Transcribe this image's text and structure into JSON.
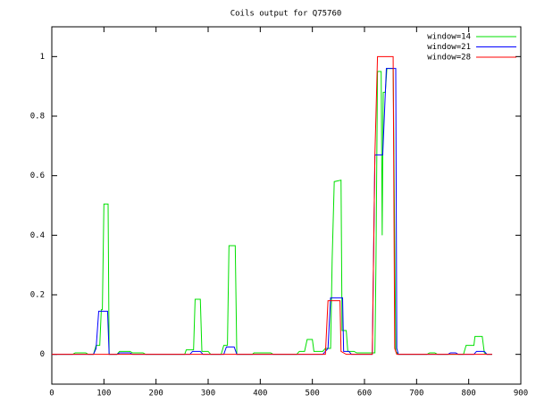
{
  "chart_data": {
    "type": "line",
    "title": "Coils output for Q75760",
    "xlim": [
      0,
      900
    ],
    "xticks": [
      0,
      100,
      200,
      300,
      400,
      500,
      600,
      700,
      800,
      900
    ],
    "ylim": [
      -0.1,
      1.1
    ],
    "yticks": [
      0,
      0.2,
      0.4,
      0.6,
      0.8,
      1
    ],
    "legend": "top-right",
    "series": [
      {
        "name": "window=14",
        "color": "#00e000",
        "x": [
          0,
          40,
          45,
          65,
          70,
          80,
          85,
          92,
          95,
          97,
          100,
          108,
          110,
          125,
          130,
          150,
          155,
          175,
          180,
          255,
          258,
          272,
          275,
          285,
          288,
          300,
          305,
          325,
          330,
          337,
          340,
          352,
          355,
          385,
          388,
          420,
          425,
          470,
          475,
          485,
          490,
          500,
          503,
          520,
          525,
          535,
          538,
          542,
          555,
          557,
          565,
          568,
          580,
          585,
          620,
          622,
          625,
          632,
          634,
          636,
          640,
          643,
          655,
          660,
          665,
          720,
          725,
          735,
          740,
          790,
          795,
          810,
          812,
          826,
          830,
          835,
          845
        ],
        "values": [
          0,
          0,
          0.005,
          0.005,
          0,
          0,
          0.03,
          0.03,
          0.15,
          0.15,
          0.505,
          0.505,
          0,
          0,
          0.01,
          0.01,
          0.005,
          0.005,
          0,
          0,
          0.015,
          0.015,
          0.185,
          0.185,
          0.01,
          0.01,
          0,
          0,
          0.03,
          0.03,
          0.365,
          0.365,
          0,
          0,
          0.005,
          0.005,
          0,
          0,
          0.01,
          0.01,
          0.05,
          0.05,
          0.01,
          0.01,
          0.02,
          0.02,
          0.32,
          0.58,
          0.585,
          0.08,
          0.08,
          0.01,
          0.01,
          0.005,
          0.005,
          0.3,
          0.95,
          0.95,
          0.4,
          0.88,
          0.88,
          0.96,
          0.96,
          0.01,
          0,
          0,
          0.005,
          0.005,
          0,
          0,
          0.03,
          0.03,
          0.06,
          0.06,
          0.005,
          0,
          0
        ]
      },
      {
        "name": "window=21",
        "color": "#0000ff",
        "x": [
          0,
          80,
          85,
          90,
          107,
          110,
          125,
          130,
          150,
          155,
          265,
          270,
          285,
          290,
          330,
          335,
          350,
          355,
          520,
          525,
          530,
          535,
          558,
          560,
          570,
          575,
          615,
          620,
          635,
          642,
          660,
          662,
          665,
          760,
          765,
          775,
          780,
          810,
          815,
          830,
          835,
          845
        ],
        "values": [
          0,
          0,
          0.02,
          0.145,
          0.145,
          0,
          0,
          0.005,
          0.005,
          0,
          0,
          0.01,
          0.01,
          0,
          0,
          0.025,
          0.025,
          0,
          0,
          0.01,
          0.02,
          0.19,
          0.19,
          0.01,
          0.01,
          0,
          0,
          0.67,
          0.67,
          0.96,
          0.96,
          0.02,
          0,
          0,
          0.005,
          0.005,
          0,
          0,
          0.01,
          0.01,
          0,
          0
        ]
      },
      {
        "name": "window=28",
        "color": "#ff0000",
        "x": [
          0,
          525,
          530,
          553,
          555,
          560,
          565,
          615,
          620,
          625,
          655,
          658,
          662,
          845
        ],
        "values": [
          0,
          0,
          0.18,
          0.18,
          0.01,
          0.005,
          0,
          0,
          0.67,
          1,
          1,
          0.02,
          0,
          0
        ]
      }
    ]
  }
}
